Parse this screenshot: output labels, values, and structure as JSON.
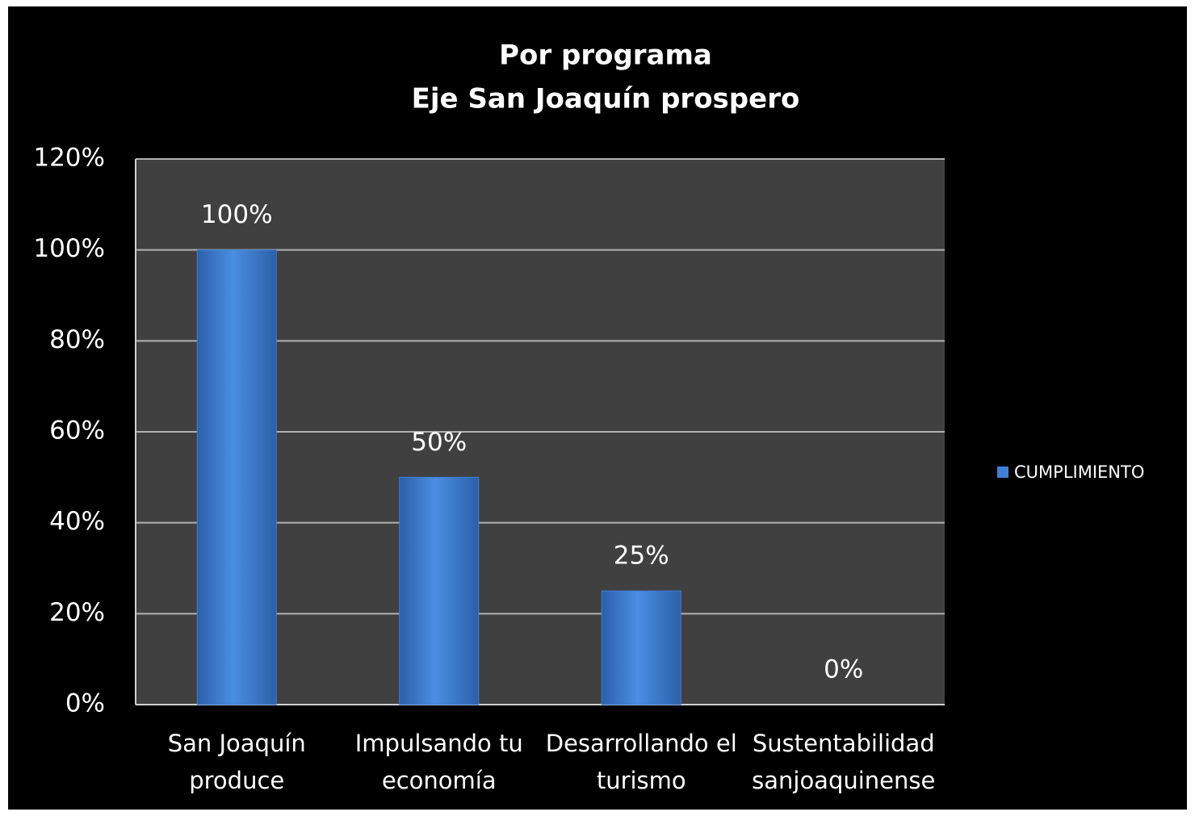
{
  "chart_data": {
    "type": "bar",
    "title": "Por programa",
    "subtitle": "Eje San Joaquín prospero",
    "categories": [
      "San Joaquín produce",
      "Impulsando tu economía",
      "Desarrollando el turismo",
      "Sustentabilidad sanjoaquinense"
    ],
    "series": [
      {
        "name": "CUMPLIMIENTO",
        "color": "#3f7fd6",
        "values": [
          100,
          50,
          25,
          0
        ],
        "value_labels": [
          "100%",
          "50%",
          "25%",
          "0%"
        ]
      }
    ],
    "ylim": [
      0,
      120
    ],
    "yticks": [
      {
        "value": 0,
        "label": "0%"
      },
      {
        "value": 20,
        "label": "20%"
      },
      {
        "value": 40,
        "label": "40%"
      },
      {
        "value": 60,
        "label": "60%"
      },
      {
        "value": 80,
        "label": "80%"
      },
      {
        "value": 100,
        "label": "100%"
      },
      {
        "value": 120,
        "label": "120%"
      }
    ],
    "grid": true,
    "legend": "right"
  }
}
